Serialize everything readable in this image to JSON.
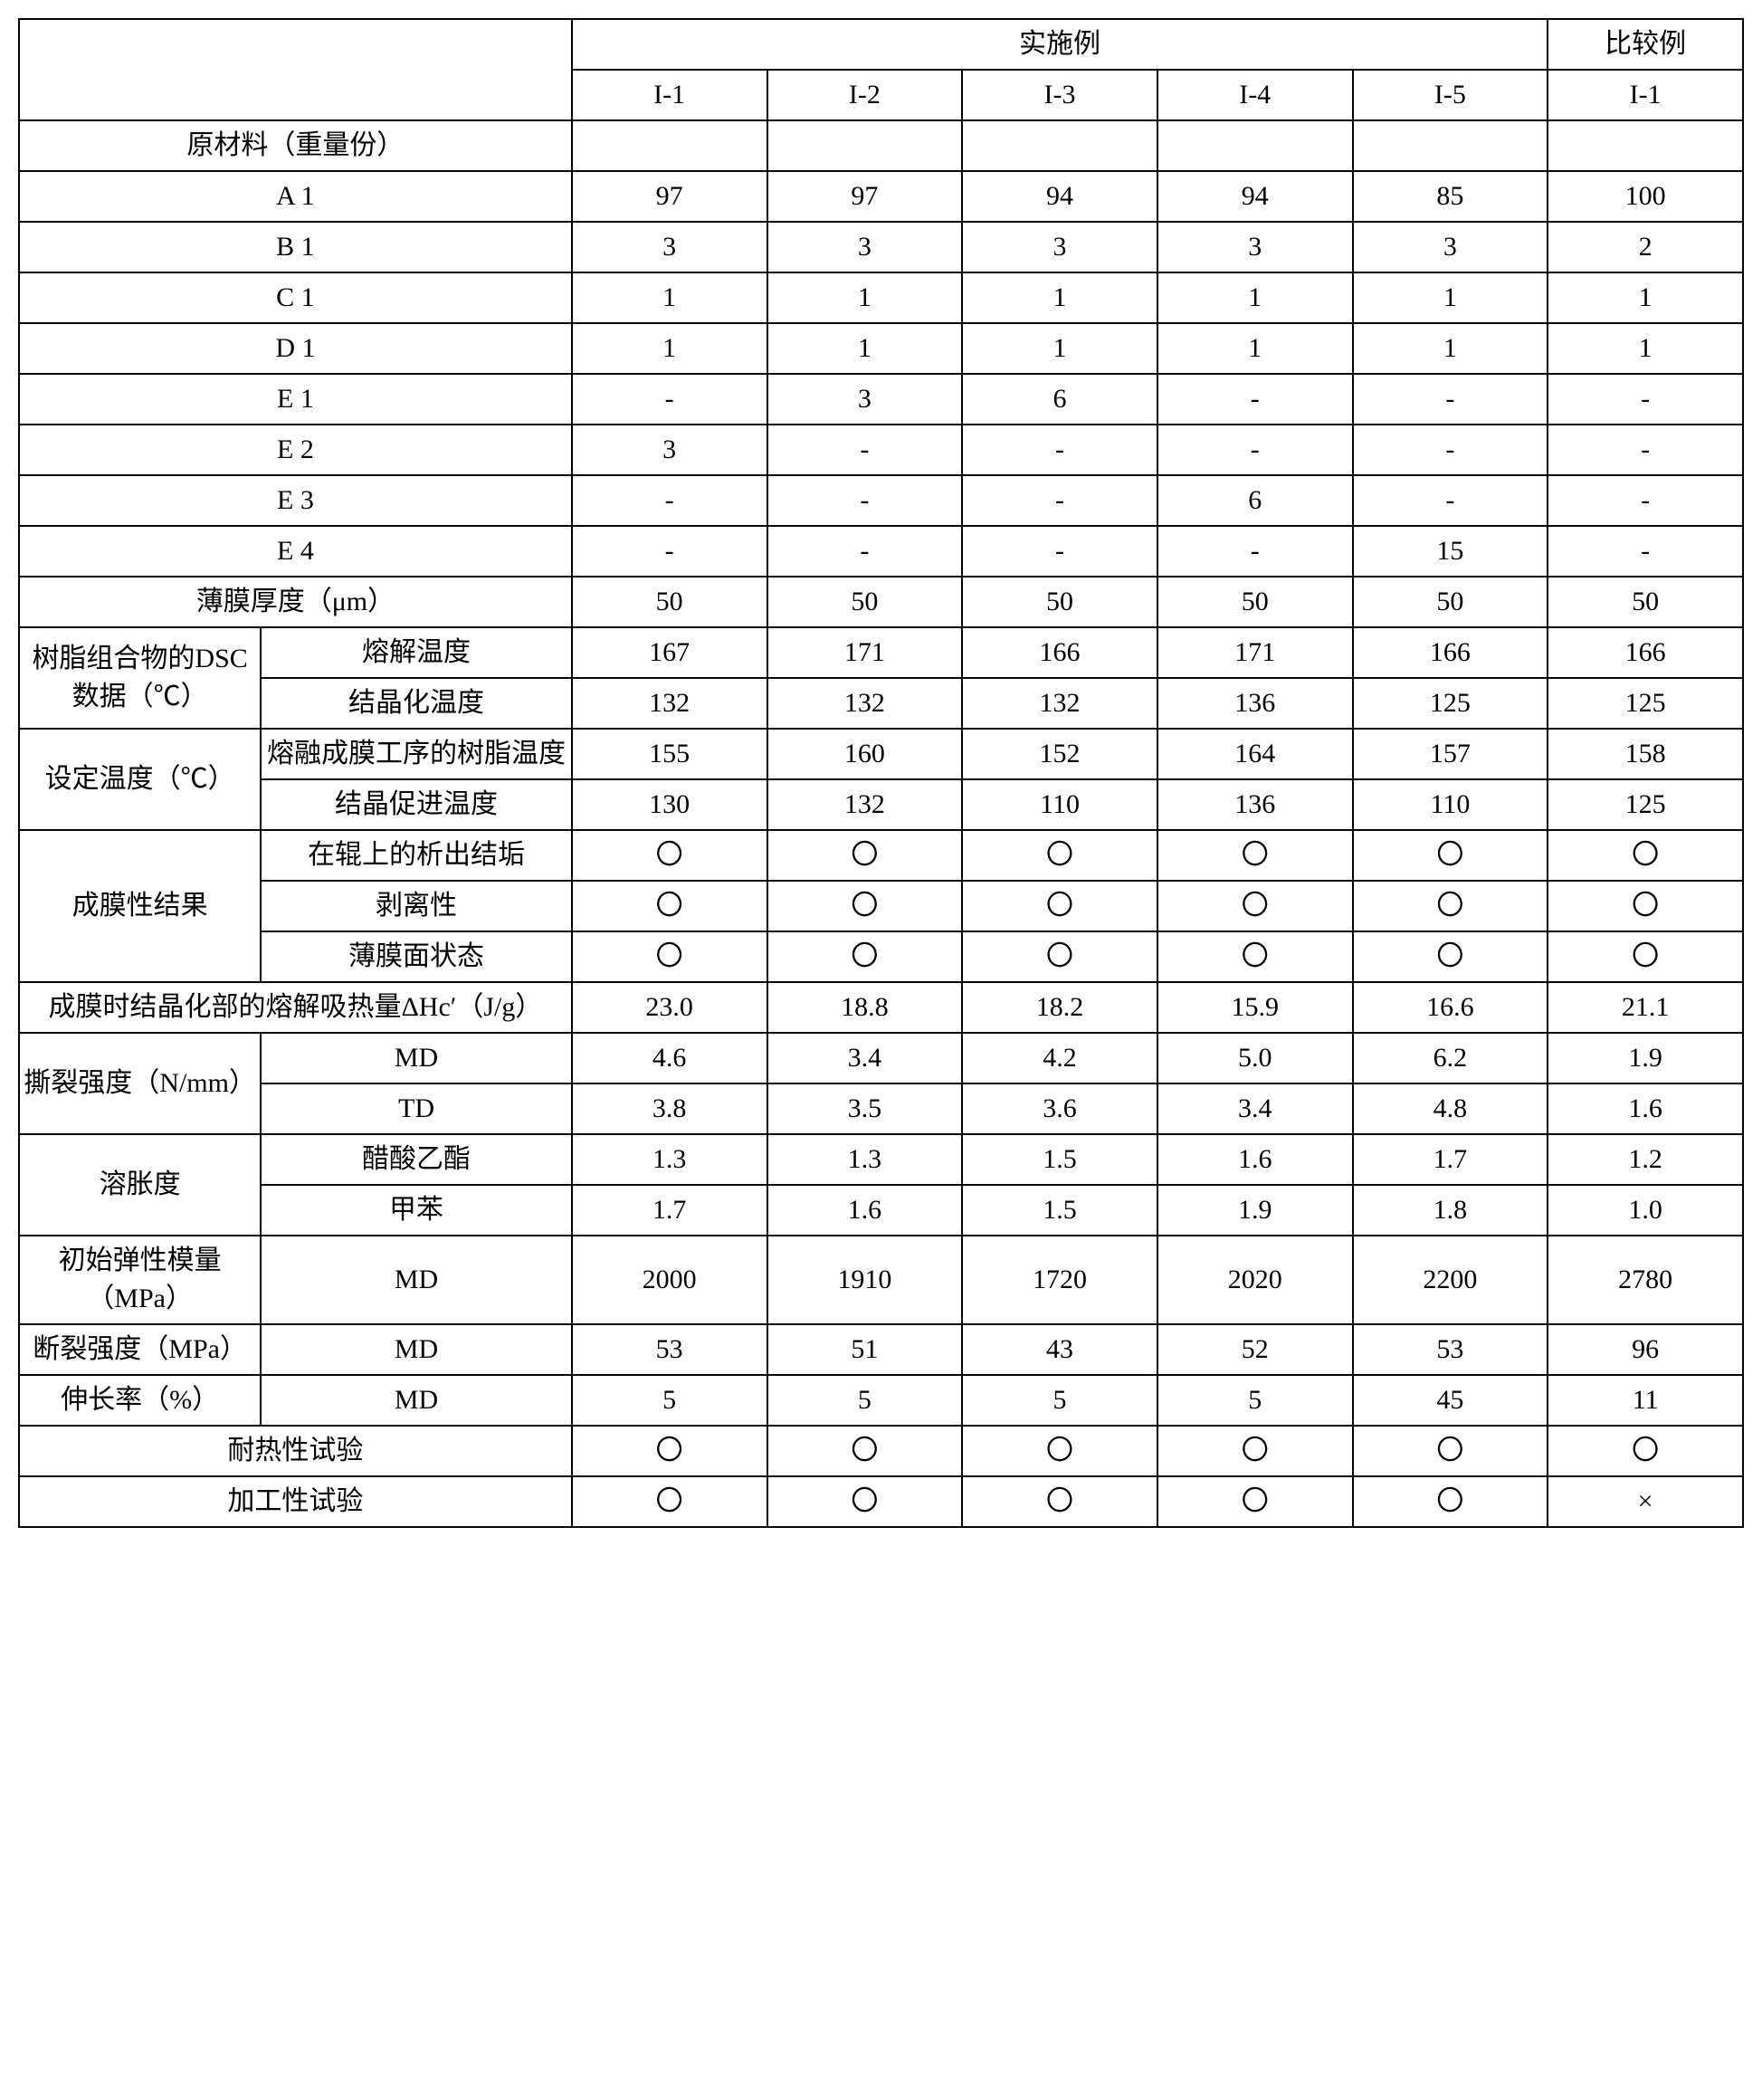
{
  "header": {
    "examples_group": "实施例",
    "compare_group": "比较例",
    "col_labels": [
      "I-1",
      "I-2",
      "I-3",
      "I-4",
      "I-5",
      "I-1"
    ]
  },
  "sections": {
    "raw_materials_title": "原材料（重量份）",
    "film_thickness": "薄膜厚度（μm）",
    "dsc_group": "树脂组合物的DSC数据（℃）",
    "dsc_melt_temp": "熔解温度",
    "dsc_cryst_temp": "结晶化温度",
    "set_temp_group": "设定温度（℃）",
    "set_resin_temp": "熔融成膜工序的树脂温度",
    "set_cryst_promote": "结晶促进温度",
    "film_result_group": "成膜性结果",
    "film_result_scale": "在辊上的析出结垢",
    "film_result_peel": "剥离性",
    "film_result_surface": "薄膜面状态",
    "delta_hc": "成膜时结晶化部的熔解吸热量ΔHc′（J/g）",
    "tear_group": "撕裂强度（N/mm）",
    "md": "MD",
    "td": "TD",
    "swell_group": "溶胀度",
    "swell_ea": "醋酸乙酯",
    "swell_toluene": "甲苯",
    "init_modulus_group": "初始弹性模量（MPa）",
    "break_strength_group": "断裂强度（MPa）",
    "elongation_group": "伸长率（%）",
    "heat_test": "耐热性试验",
    "process_test": "加工性试验"
  },
  "labels_raw": {
    "A1": "A 1",
    "B1": "B 1",
    "C1": "C 1",
    "D1": "D 1",
    "E1": "E 1",
    "E2": "E 2",
    "E3": "E 3",
    "E4": "E 4"
  },
  "circle": "〇",
  "cross": "×",
  "rows": {
    "A1": [
      "97",
      "97",
      "94",
      "94",
      "85",
      "100"
    ],
    "B1": [
      "3",
      "3",
      "3",
      "3",
      "3",
      "2"
    ],
    "C1": [
      "1",
      "1",
      "1",
      "1",
      "1",
      "1"
    ],
    "D1": [
      "1",
      "1",
      "1",
      "1",
      "1",
      "1"
    ],
    "E1": [
      "-",
      "3",
      "6",
      "-",
      "-",
      "-"
    ],
    "E2": [
      "3",
      "-",
      "-",
      "-",
      "-",
      "-"
    ],
    "E3": [
      "-",
      "-",
      "-",
      "6",
      "-",
      "-"
    ],
    "E4": [
      "-",
      "-",
      "-",
      "-",
      "15",
      "-"
    ],
    "film_thickness": [
      "50",
      "50",
      "50",
      "50",
      "50",
      "50"
    ],
    "dsc_melt": [
      "167",
      "171",
      "166",
      "171",
      "166",
      "166"
    ],
    "dsc_cryst": [
      "132",
      "132",
      "132",
      "136",
      "125",
      "125"
    ],
    "set_resin": [
      "155",
      "160",
      "152",
      "164",
      "157",
      "158"
    ],
    "set_cryst": [
      "130",
      "132",
      "110",
      "136",
      "110",
      "125"
    ],
    "res_scale": [
      "〇",
      "〇",
      "〇",
      "〇",
      "〇",
      "〇"
    ],
    "res_peel": [
      "〇",
      "〇",
      "〇",
      "〇",
      "〇",
      "〇"
    ],
    "res_surface": [
      "〇",
      "〇",
      "〇",
      "〇",
      "〇",
      "〇"
    ],
    "delta_hc": [
      "23.0",
      "18.8",
      "18.2",
      "15.9",
      "16.6",
      "21.1"
    ],
    "tear_md": [
      "4.6",
      "3.4",
      "4.2",
      "5.0",
      "6.2",
      "1.9"
    ],
    "tear_td": [
      "3.8",
      "3.5",
      "3.6",
      "3.4",
      "4.8",
      "1.6"
    ],
    "swell_ea": [
      "1.3",
      "1.3",
      "1.5",
      "1.6",
      "1.7",
      "1.2"
    ],
    "swell_tol": [
      "1.7",
      "1.6",
      "1.5",
      "1.9",
      "1.8",
      "1.0"
    ],
    "init_mod": [
      "2000",
      "1910",
      "1720",
      "2020",
      "2200",
      "2780"
    ],
    "break_str": [
      "53",
      "51",
      "43",
      "52",
      "53",
      "96"
    ],
    "elong": [
      "5",
      "5",
      "5",
      "5",
      "45",
      "11"
    ],
    "heat_test": [
      "〇",
      "〇",
      "〇",
      "〇",
      "〇",
      "〇"
    ],
    "process_test": [
      "〇",
      "〇",
      "〇",
      "〇",
      "〇",
      "×"
    ]
  }
}
